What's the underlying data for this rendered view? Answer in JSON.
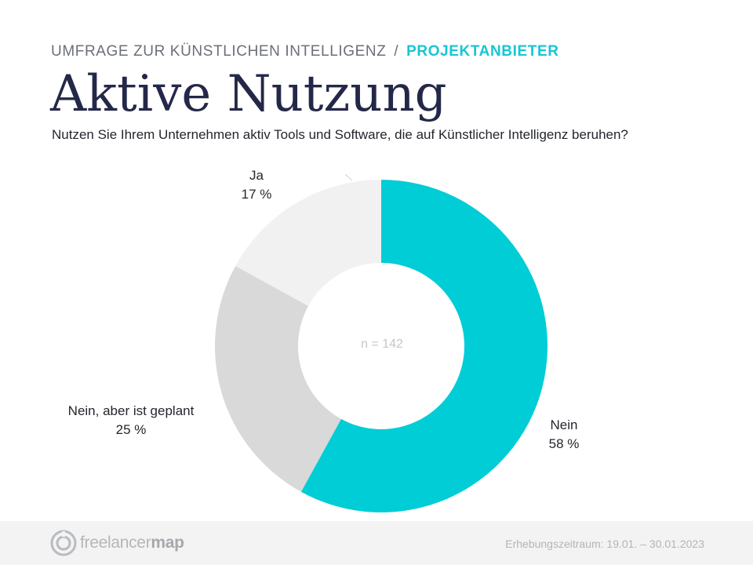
{
  "header": {
    "kicker_main": "UMFRAGE ZUR KÜNSTLICHEN INTELLIGENZ",
    "kicker_sep": "/",
    "kicker_accent": "PROJEKTANBIETER",
    "title": "Aktive Nutzung",
    "question": "Nutzen Sie Ihrem Unternehmen aktiv Tools und Software, die auf Künstlicher Intelligenz beruhen?"
  },
  "chart_data": {
    "type": "pie",
    "variant": "donut",
    "center_label": "n = 142",
    "slices": [
      {
        "name": "Nein",
        "value": 58,
        "value_label": "58 %",
        "color": "#00cdd6"
      },
      {
        "name": "Nein, aber ist geplant",
        "value": 25,
        "value_label": "25 %",
        "color": "#d9d9d9"
      },
      {
        "name": "Ja",
        "value": 17,
        "value_label": "17 %",
        "color": "#f1f1f1"
      }
    ]
  },
  "footer": {
    "logo_text_light": "freelancer",
    "logo_text_bold": "map",
    "period": "Erhebungszeitraum: 19.01. – 30.01.2023"
  }
}
